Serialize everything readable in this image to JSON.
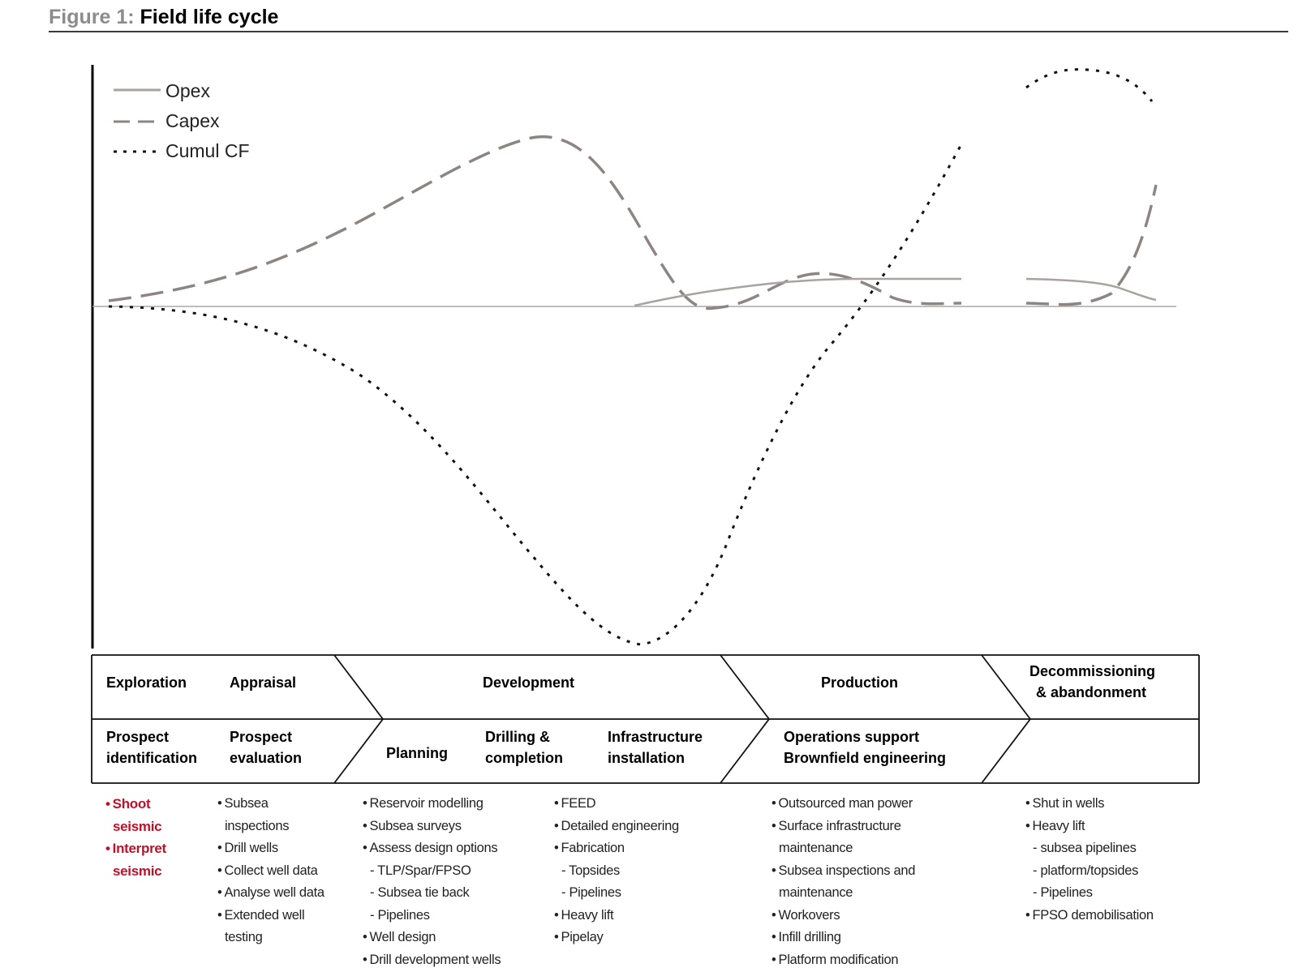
{
  "figure": {
    "number": "Figure 1:",
    "title": "Field life cycle"
  },
  "legend": [
    {
      "label": "Opex",
      "style": "solid"
    },
    {
      "label": "Capex",
      "style": "dashed"
    },
    {
      "label": "Cumul CF",
      "style": "dotted"
    }
  ],
  "colors": {
    "opex": "#a8a2a0",
    "capex": "#8d8583",
    "cumul_cf": "#111111",
    "highlight": "#c0102a"
  },
  "phases_row": {
    "exploration": "Exploration",
    "appraisal": "Appraisal",
    "development": "Development",
    "production": "Production",
    "decommissioning_line1": "Decommissioning",
    "decommissioning_line2": "& abandonment"
  },
  "activities_row": {
    "prospect_identification_line1": "Prospect",
    "prospect_identification_line2": "identification",
    "prospect_evaluation_line1": "Prospect",
    "prospect_evaluation_line2": "evaluation",
    "planning": "Planning",
    "drilling_line1": "Drilling &",
    "drilling_line2": "completion",
    "infrastructure_line1": "Infrastructure",
    "infrastructure_line2": "installation",
    "operations_line1": "Operations support",
    "operations_line2": "Brownfield engineering"
  },
  "tasks": {
    "exploration": [
      {
        "text": "Shoot",
        "kind": "bullet"
      },
      {
        "text": "seismic",
        "kind": "wrap"
      },
      {
        "text": "Interpret",
        "kind": "bullet"
      },
      {
        "text": "seismic",
        "kind": "wrap"
      }
    ],
    "appraisal": [
      {
        "text": "Subsea",
        "kind": "bullet"
      },
      {
        "text": "inspections",
        "kind": "wrap"
      },
      {
        "text": "Drill wells",
        "kind": "bullet"
      },
      {
        "text": "Collect well data",
        "kind": "bullet"
      },
      {
        "text": "Analyse well data",
        "kind": "bullet"
      },
      {
        "text": "Extended well",
        "kind": "bullet"
      },
      {
        "text": "testing",
        "kind": "wrap"
      }
    ],
    "planning": [
      {
        "text": "Reservoir modelling",
        "kind": "bullet"
      },
      {
        "text": "Subsea surveys",
        "kind": "bullet"
      },
      {
        "text": "Assess design options",
        "kind": "bullet"
      },
      {
        "text": "- TLP/Spar/FPSO",
        "kind": "sub"
      },
      {
        "text": "- Subsea tie back",
        "kind": "sub"
      },
      {
        "text": "- Pipelines",
        "kind": "sub"
      },
      {
        "text": "Well design",
        "kind": "bullet"
      },
      {
        "text": "Drill development wells",
        "kind": "bullet"
      }
    ],
    "installation": [
      {
        "text": "FEED",
        "kind": "bullet"
      },
      {
        "text": "Detailed engineering",
        "kind": "bullet"
      },
      {
        "text": "Fabrication",
        "kind": "bullet"
      },
      {
        "text": "- Topsides",
        "kind": "sub"
      },
      {
        "text": "- Pipelines",
        "kind": "sub"
      },
      {
        "text": "Heavy lift",
        "kind": "bullet"
      },
      {
        "text": "Pipelay",
        "kind": "bullet"
      }
    ],
    "production": [
      {
        "text": "Outsourced man power",
        "kind": "bullet"
      },
      {
        "text": "Surface infrastructure",
        "kind": "bullet"
      },
      {
        "text": "maintenance",
        "kind": "wrap"
      },
      {
        "text": "Subsea inspections and",
        "kind": "bullet"
      },
      {
        "text": "maintenance",
        "kind": "wrap"
      },
      {
        "text": "Workovers",
        "kind": "bullet"
      },
      {
        "text": "Infill drilling",
        "kind": "bullet"
      },
      {
        "text": "Platform modification",
        "kind": "bullet"
      }
    ],
    "decommissioning": [
      {
        "text": "Shut in wells",
        "kind": "bullet"
      },
      {
        "text": "Heavy lift",
        "kind": "bullet"
      },
      {
        "text": "- subsea pipelines",
        "kind": "sub"
      },
      {
        "text": "- platform/topsides",
        "kind": "sub"
      },
      {
        "text": "- Pipelines",
        "kind": "sub"
      },
      {
        "text": "FPSO demobilisation",
        "kind": "bullet"
      }
    ]
  }
}
